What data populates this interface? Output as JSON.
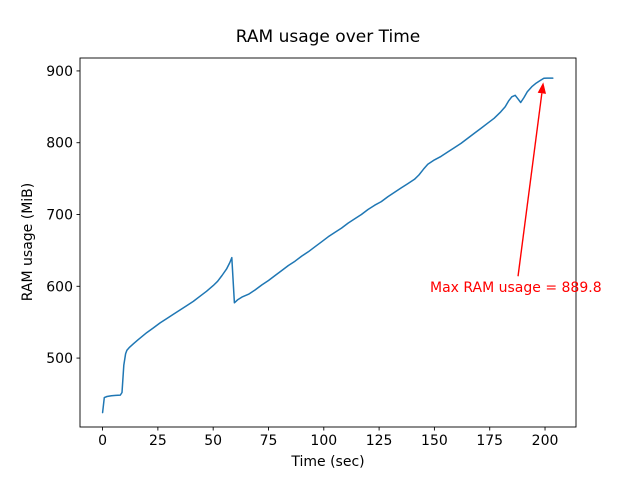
{
  "chart_data": {
    "type": "line",
    "title": "RAM usage over Time",
    "xlabel": "Time (sec)",
    "ylabel": "RAM usage (MiB)",
    "xlim": [
      -10.2,
      214
    ],
    "ylim": [
      404,
      918
    ],
    "x_ticks": [
      0,
      25,
      50,
      75,
      100,
      125,
      150,
      175,
      200
    ],
    "y_ticks": [
      500,
      600,
      700,
      800,
      900
    ],
    "grid": false,
    "legend": "none",
    "line_color": "#1f77b4",
    "axis_color": "#000000",
    "background_color": "#ffffff",
    "series": [
      {
        "name": "RAM usage",
        "points": [
          [
            0,
            424
          ],
          [
            0.8,
            445
          ],
          [
            2,
            446.5
          ],
          [
            4,
            447.5
          ],
          [
            6,
            448
          ],
          [
            8,
            448.5
          ],
          [
            8.8,
            452
          ],
          [
            9.6,
            490
          ],
          [
            10.4,
            506
          ],
          [
            11,
            511
          ],
          [
            12,
            514.5
          ],
          [
            14,
            520
          ],
          [
            16,
            525.5
          ],
          [
            18,
            530.5
          ],
          [
            20,
            535.5
          ],
          [
            23,
            542
          ],
          [
            26,
            549
          ],
          [
            29,
            555
          ],
          [
            32,
            561
          ],
          [
            35,
            567
          ],
          [
            38,
            573
          ],
          [
            41,
            579
          ],
          [
            44,
            586
          ],
          [
            47,
            593
          ],
          [
            50,
            601
          ],
          [
            52,
            607
          ],
          [
            54,
            615
          ],
          [
            56,
            624
          ],
          [
            57.5,
            633
          ],
          [
            58.4,
            640
          ],
          [
            59.6,
            577
          ],
          [
            61,
            581
          ],
          [
            63,
            585
          ],
          [
            66,
            589
          ],
          [
            69,
            595
          ],
          [
            72,
            602
          ],
          [
            75,
            608
          ],
          [
            78,
            615
          ],
          [
            81,
            622
          ],
          [
            84,
            629
          ],
          [
            87,
            635
          ],
          [
            90,
            642
          ],
          [
            93,
            648
          ],
          [
            96,
            655
          ],
          [
            99,
            662
          ],
          [
            102,
            669
          ],
          [
            105,
            675
          ],
          [
            108,
            681
          ],
          [
            111,
            688
          ],
          [
            114,
            694
          ],
          [
            117,
            700
          ],
          [
            120,
            707
          ],
          [
            123,
            713
          ],
          [
            126,
            718
          ],
          [
            129,
            725
          ],
          [
            132,
            731
          ],
          [
            135,
            737
          ],
          [
            138,
            743
          ],
          [
            141,
            749
          ],
          [
            143,
            755
          ],
          [
            145,
            763
          ],
          [
            147,
            770
          ],
          [
            150,
            776
          ],
          [
            153,
            781
          ],
          [
            156,
            787
          ],
          [
            159,
            793
          ],
          [
            162,
            799
          ],
          [
            165,
            806
          ],
          [
            168,
            813
          ],
          [
            171,
            820
          ],
          [
            174,
            827
          ],
          [
            177,
            834
          ],
          [
            180,
            843
          ],
          [
            182,
            850
          ],
          [
            183.5,
            858
          ],
          [
            185,
            864
          ],
          [
            186.5,
            866
          ],
          [
            188,
            860
          ],
          [
            189,
            856
          ],
          [
            190.5,
            863
          ],
          [
            192,
            871
          ],
          [
            194,
            878
          ],
          [
            196,
            883
          ],
          [
            198,
            887
          ],
          [
            199.5,
            889.8
          ],
          [
            201,
            890
          ],
          [
            203.5,
            890
          ]
        ]
      }
    ],
    "max_value": 889.8,
    "annotation": {
      "text": "Max RAM usage = 889.8",
      "color": "#ff0000",
      "arrow_tail": [
        187.8,
        614
      ],
      "arrow_tip": [
        199.2,
        884
      ],
      "text_pos": [
        148,
        592
      ]
    }
  }
}
